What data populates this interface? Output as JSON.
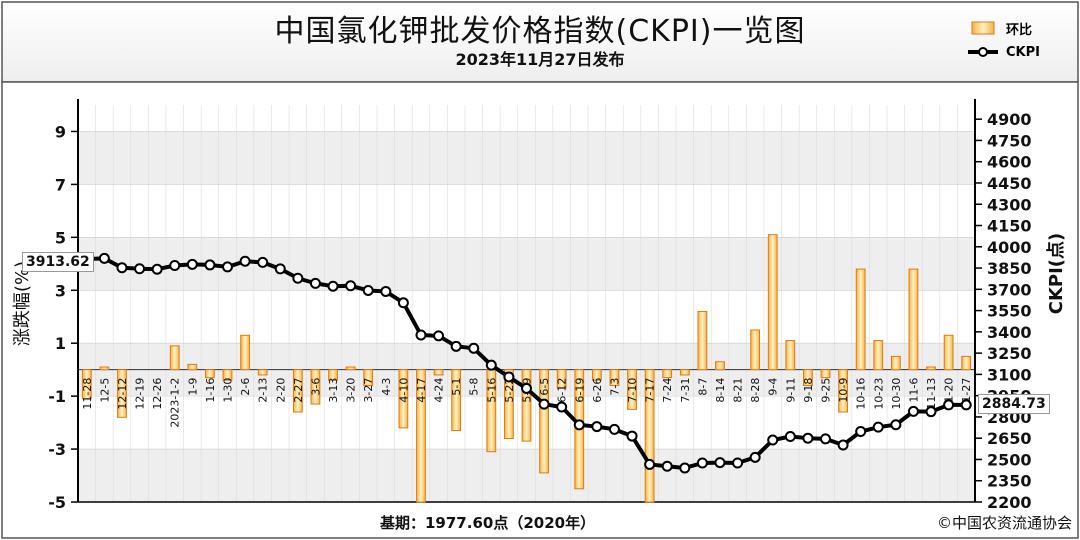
{
  "header": {
    "title": "中国氯化钾批发价格指数(CKPI)一览图",
    "subtitle": "2023年11月27日发布"
  },
  "legend": {
    "bar_label": "环比",
    "line_label": "CKPI"
  },
  "footer": {
    "base_text": "基期：1977.60点（2020年）",
    "copyright": "©中国农资流通协会"
  },
  "callouts": {
    "start_value": "3913.62",
    "end_value": "2884.73"
  },
  "colors": {
    "bar_fill_top": "#fde9a8",
    "bar_fill_bottom": "#f0b040",
    "bar_stroke": "#e07a10",
    "line": "#000000",
    "plot_bg_band": "#eeeeee"
  },
  "chart_data": {
    "type": "bar",
    "xlabel": "",
    "ylabel": "涨跌幅(%)",
    "y2label": "CKPI(点)",
    "ylim": [
      -5,
      10
    ],
    "y2lim": [
      2200,
      5000
    ],
    "y_ticks": [
      9,
      7,
      5,
      3,
      1,
      -1,
      -3,
      -5
    ],
    "y2_ticks": [
      4900,
      4750,
      4600,
      4450,
      4300,
      4150,
      4000,
      3850,
      3700,
      3550,
      3400,
      3250,
      3100,
      2950,
      2800,
      2650,
      2500,
      2350,
      2200
    ],
    "categories": [
      "11-28",
      "12-5",
      "12-12",
      "12-19",
      "12-26",
      "2023-1-2",
      "1-9",
      "1-16",
      "1-30",
      "2-6",
      "2-13",
      "2-20",
      "2-27",
      "3-6",
      "3-13",
      "3-20",
      "3-27",
      "4-3",
      "4-10",
      "4-17",
      "4-24",
      "5-1",
      "5-8",
      "5-16",
      "5-22",
      "5-29",
      "6-5",
      "6-12",
      "6-19",
      "6-26",
      "7-3",
      "7-10",
      "7-17",
      "7-24",
      "7-31",
      "8-7",
      "8-14",
      "8-21",
      "8-28",
      "9-4",
      "9-11",
      "9-18",
      "9-25",
      "10-9",
      "10-16",
      "10-23",
      "10-30",
      "11-6",
      "11-13",
      "11-20",
      "11-27"
    ],
    "series": [
      {
        "name": "环比",
        "type": "bar",
        "axis": "left",
        "values": [
          -1.1,
          0.1,
          -1.8,
          0.0,
          0.0,
          0.9,
          0.2,
          -0.3,
          -0.4,
          1.3,
          -0.2,
          0.0,
          -1.6,
          -1.3,
          -0.4,
          0.1,
          -0.6,
          0.0,
          -2.2,
          -5.0,
          -0.2,
          -2.3,
          0.0,
          -3.1,
          -2.6,
          -2.7,
          -3.9,
          -0.7,
          -4.5,
          -0.4,
          -0.6,
          -1.5,
          -5.0,
          -0.3,
          -0.2,
          2.2,
          0.3,
          0.0,
          1.5,
          5.1,
          1.1,
          -0.6,
          -0.3,
          -1.6,
          3.8,
          1.1,
          0.5,
          3.8,
          0.1,
          1.3,
          0.5
        ]
      },
      {
        "name": "CKPI",
        "type": "line",
        "axis": "right",
        "values": [
          3913.62,
          3918,
          3852,
          3845,
          3842,
          3868,
          3876,
          3872,
          3858,
          3898,
          3890,
          3844,
          3778,
          3742,
          3722,
          3725,
          3692,
          3685,
          3605,
          3378,
          3372,
          3298,
          3284,
          3165,
          3082,
          3001,
          2890,
          2870,
          2744,
          2732,
          2712,
          2665,
          2465,
          2452,
          2440,
          2475,
          2478,
          2475,
          2515,
          2637,
          2662,
          2650,
          2645,
          2602,
          2697,
          2728,
          2745,
          2839,
          2837,
          2884.73,
          2884.73
        ]
      }
    ],
    "grid": true,
    "legend_position": "top-right"
  }
}
